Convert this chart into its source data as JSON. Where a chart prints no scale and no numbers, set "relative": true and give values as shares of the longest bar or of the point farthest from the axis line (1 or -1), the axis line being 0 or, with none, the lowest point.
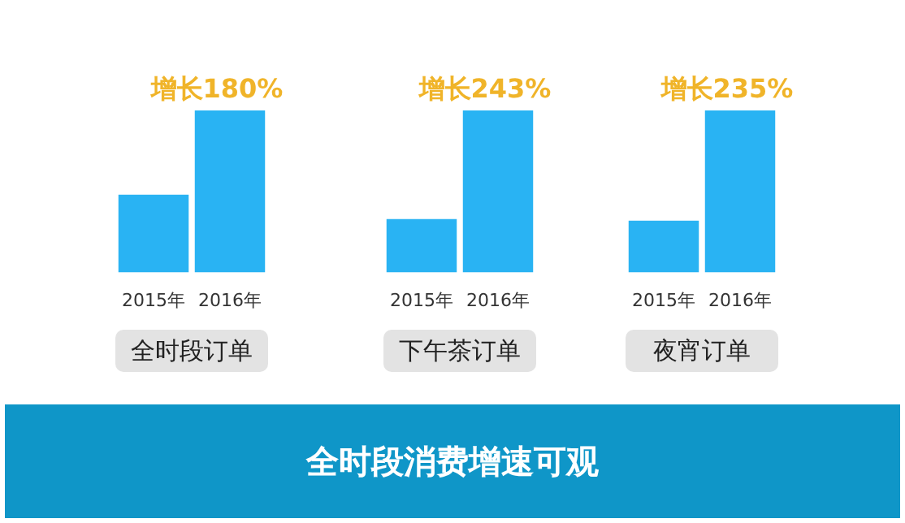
{
  "chart_data": [
    {
      "type": "bar",
      "relative": true,
      "categories": [
        "2015年",
        "2016年"
      ],
      "values": [
        0.48,
        1
      ],
      "color": "#29b3f3",
      "xlabel": "全时段订单",
      "annotations": [
        {
          "text": "增长180%",
          "x": "2016年",
          "y": 1
        }
      ]
    },
    {
      "type": "bar",
      "relative": true,
      "categories": [
        "2015年",
        "2016年"
      ],
      "values": [
        0.33,
        1
      ],
      "color": "#29b3f3",
      "xlabel": "下午茶订单",
      "annotations": [
        {
          "text": "增长243%",
          "x": "2016年",
          "y": 1
        }
      ]
    },
    {
      "type": "bar",
      "relative": true,
      "categories": [
        "2015年",
        "2016年"
      ],
      "values": [
        0.32,
        1
      ],
      "color": "#29b3f3",
      "xlabel": "夜宵订单",
      "annotations": [
        {
          "text": "增长235%",
          "x": "2016年",
          "y": 1
        }
      ]
    },
    {
      "type": "other",
      "title": "全时段消费增速可观"
    }
  ]
}
